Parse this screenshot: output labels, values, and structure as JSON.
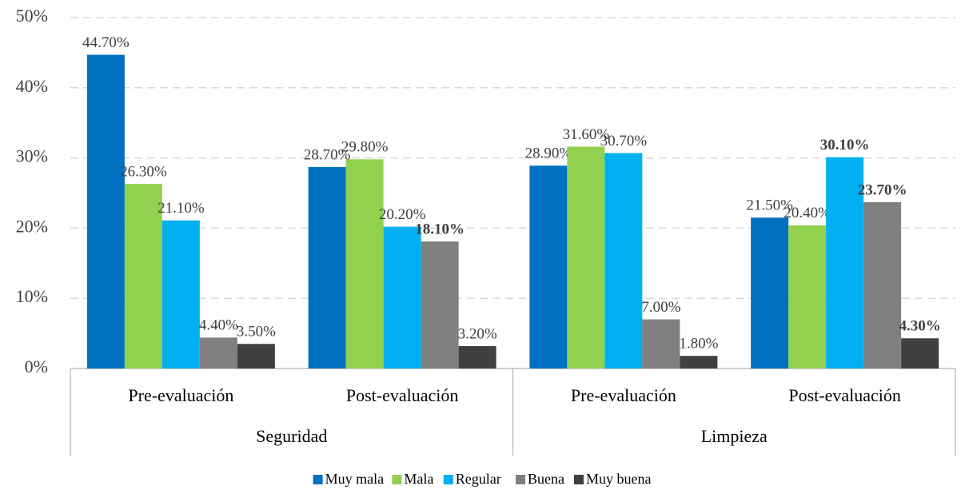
{
  "chart_data": {
    "type": "bar",
    "groups": [
      "Seguridad",
      "Limpieza"
    ],
    "categories": [
      "Pre-evaluación",
      "Post-evaluación",
      "Pre-evaluación",
      "Post-evaluación"
    ],
    "series": [
      {
        "name": "Muy mala",
        "color": "#0070c0",
        "values": [
          44.7,
          28.7,
          28.9,
          21.5
        ],
        "value_labels": [
          "44.70%",
          "28.70%",
          "28.90%",
          "21.50%"
        ],
        "value_labels_bold": [
          false,
          false,
          false,
          false
        ]
      },
      {
        "name": "Mala",
        "color": "#92d050",
        "values": [
          26.3,
          29.8,
          31.6,
          20.4
        ],
        "value_labels": [
          "26.30%",
          "29.80%",
          "31.60%",
          "20.40%"
        ],
        "value_labels_bold": [
          false,
          false,
          false,
          false
        ]
      },
      {
        "name": "Regular",
        "color": "#00b0f0",
        "values": [
          21.1,
          20.2,
          30.7,
          30.1
        ],
        "value_labels": [
          "21.10%",
          "20.20%",
          "30.70%",
          "30.10%"
        ],
        "value_labels_bold": [
          false,
          false,
          false,
          true
        ]
      },
      {
        "name": "Buena",
        "color": "#808080",
        "values": [
          4.4,
          18.1,
          7.0,
          23.7
        ],
        "value_labels": [
          "4.40%",
          "18.10%",
          "7.00%",
          "23.70%"
        ],
        "value_labels_bold": [
          false,
          true,
          false,
          true
        ]
      },
      {
        "name": "Muy buena",
        "color": "#404040",
        "values": [
          3.5,
          3.2,
          1.8,
          4.3
        ],
        "value_labels": [
          "3.50%",
          "3.20%",
          "1.80%",
          "4.30%"
        ],
        "value_labels_bold": [
          false,
          false,
          false,
          true
        ]
      }
    ],
    "ylim": [
      0,
      50
    ],
    "yticks": [
      {
        "value": 0,
        "label": "0%"
      },
      {
        "value": 10,
        "label": "10%"
      },
      {
        "value": 20,
        "label": "20%"
      },
      {
        "value": 30,
        "label": "30%"
      },
      {
        "value": 40,
        "label": "40%"
      },
      {
        "value": 50,
        "label": "50%"
      }
    ],
    "grid": true,
    "legend": "bottom"
  }
}
